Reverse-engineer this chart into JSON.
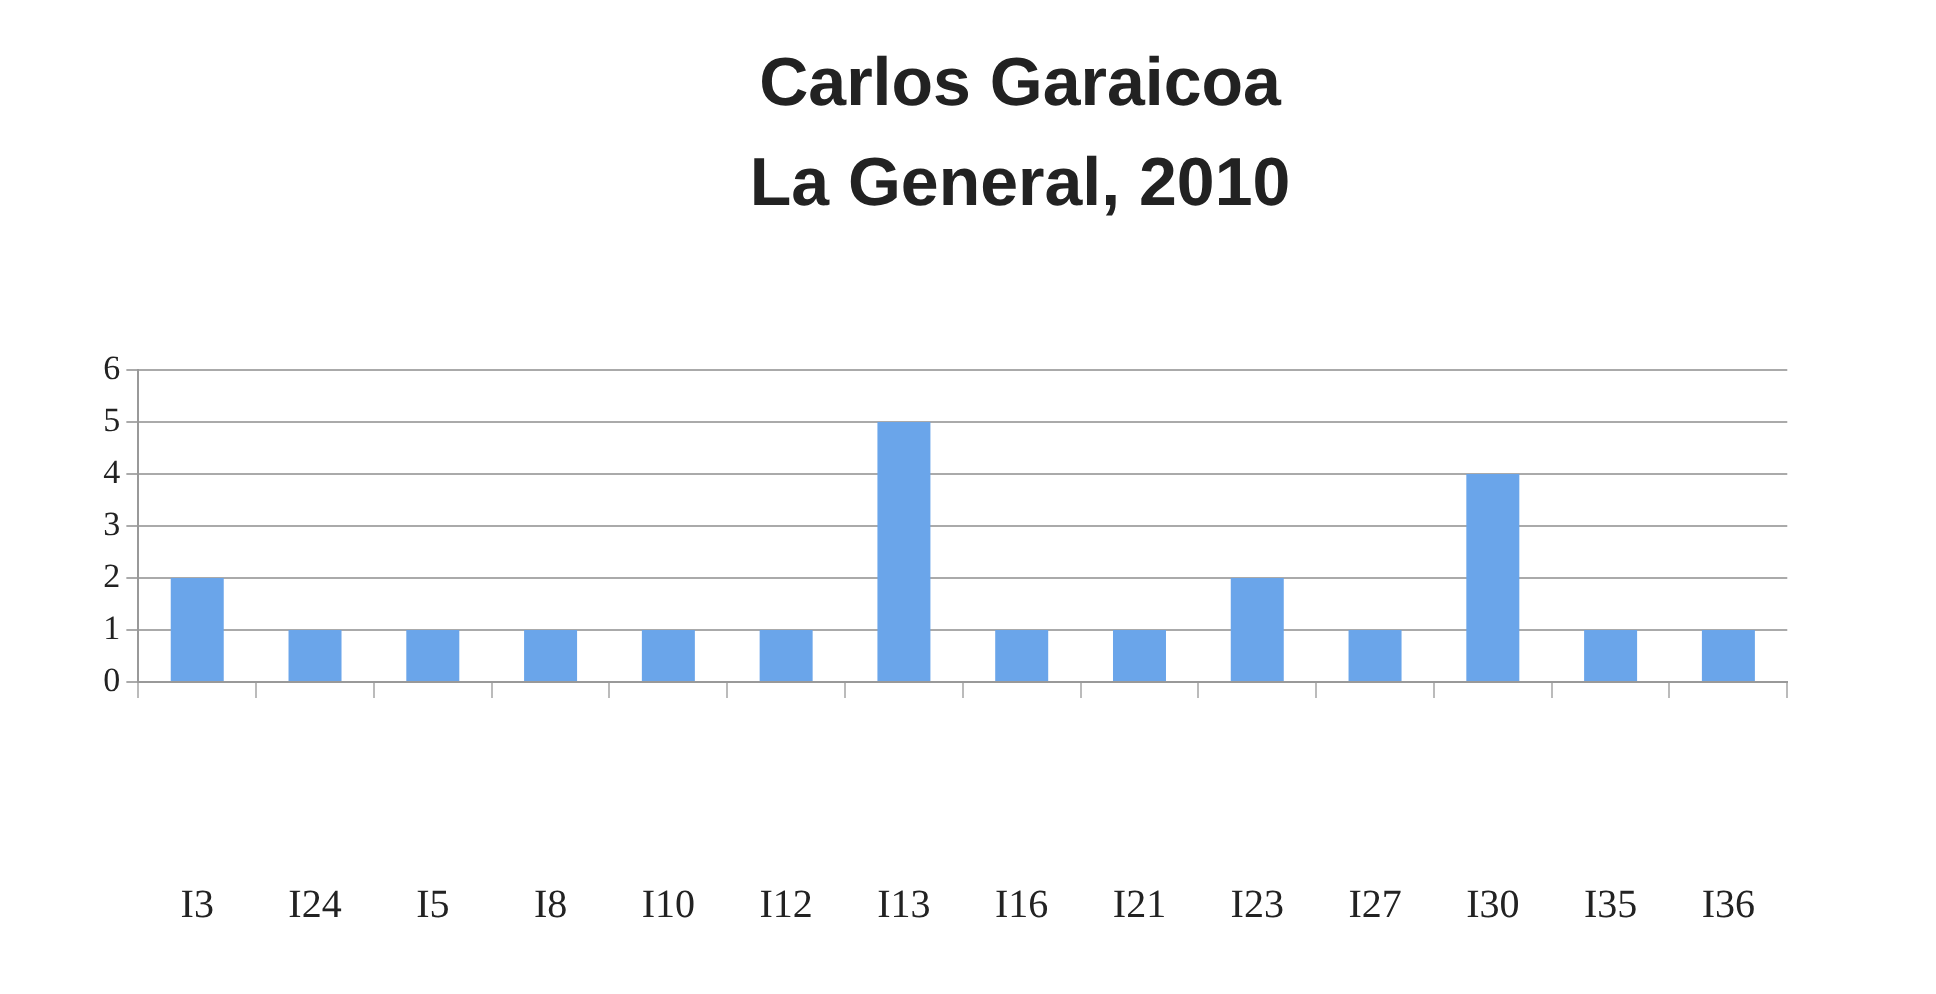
{
  "chart_data": {
    "type": "bar",
    "title": "Carlos Garaicoa",
    "subtitle": "La General, 2010",
    "categories": [
      "I3",
      "I24",
      "I5",
      "I8",
      "I10",
      "I12",
      "I13",
      "I16",
      "I21",
      "I23",
      "I27",
      "I30",
      "I35",
      "I36"
    ],
    "values": [
      2,
      1,
      1,
      1,
      1,
      1,
      5,
      1,
      1,
      2,
      1,
      4,
      1,
      1
    ],
    "color": "#6aa5ea",
    "ylim": [
      0,
      6
    ],
    "yticks": [
      0,
      1,
      2,
      3,
      4,
      5,
      6
    ],
    "grid": "y",
    "legend": false
  }
}
